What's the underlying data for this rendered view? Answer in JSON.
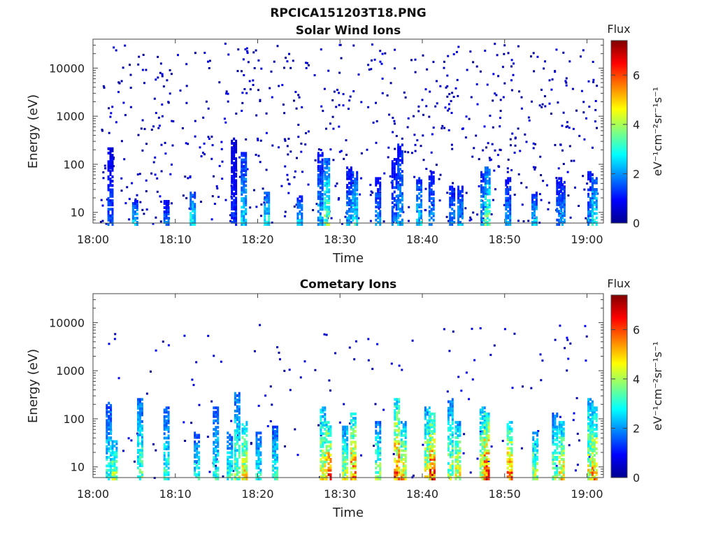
{
  "figure": {
    "title": "RPCICA151203T18.PNG"
  },
  "chart_data": [
    {
      "type": "heatmap",
      "title": "Solar Wind Ions",
      "xlabel": "Time",
      "ylabel": "Energy (eV)",
      "x_ticks": [
        "18:00",
        "18:10",
        "18:20",
        "18:30",
        "18:40",
        "18:50",
        "19:00"
      ],
      "x_range_minutes": [
        0,
        62
      ],
      "y_scale": "log",
      "y_ticks": [
        10,
        100,
        1000,
        10000
      ],
      "y_tick_labels": [
        "10",
        "100",
        "1000",
        "10000"
      ],
      "y_range": [
        6,
        40000
      ],
      "colorbar": {
        "title": "Flux",
        "unit": "eV⁻¹cm⁻²sr⁻¹s⁻¹",
        "range": [
          0,
          7.4
        ],
        "ticks": [
          0,
          2,
          4,
          6
        ],
        "colormap": "jet"
      },
      "bursts": [
        {
          "t": 2.0,
          "emax": 250,
          "flux": 1.5
        },
        {
          "t": 5.0,
          "emax": 20,
          "flux": 2.5
        },
        {
          "t": 8.8,
          "emax": 20,
          "flux": 1.8
        },
        {
          "t": 12.0,
          "emax": 30,
          "flux": 2.8
        },
        {
          "t": 17.0,
          "emax": 400,
          "flux": 1.2
        },
        {
          "t": 18.2,
          "emax": 200,
          "flux": 2.5
        },
        {
          "t": 21.0,
          "emax": 30,
          "flux": 3.0
        },
        {
          "t": 25.0,
          "emax": 25,
          "flux": 2.5
        },
        {
          "t": 27.5,
          "emax": 200,
          "flux": 2.2
        },
        {
          "t": 28.3,
          "emax": 150,
          "flux": 3.5
        },
        {
          "t": 31.0,
          "emax": 100,
          "flux": 2.0
        },
        {
          "t": 31.7,
          "emax": 80,
          "flux": 2.8
        },
        {
          "t": 34.5,
          "emax": 60,
          "flux": 2.0
        },
        {
          "t": 36.5,
          "emax": 150,
          "flux": 1.8
        },
        {
          "t": 37.2,
          "emax": 300,
          "flux": 2.2
        },
        {
          "t": 39.5,
          "emax": 60,
          "flux": 2.5
        },
        {
          "t": 41.0,
          "emax": 80,
          "flux": 2.0
        },
        {
          "t": 43.5,
          "emax": 40,
          "flux": 2.0
        },
        {
          "t": 44.5,
          "emax": 40,
          "flux": 2.2
        },
        {
          "t": 47.3,
          "emax": 80,
          "flux": 2.3
        },
        {
          "t": 47.8,
          "emax": 100,
          "flux": 3.5
        },
        {
          "t": 50.3,
          "emax": 60,
          "flux": 2.0
        },
        {
          "t": 53.5,
          "emax": 30,
          "flux": 2.5
        },
        {
          "t": 56.5,
          "emax": 60,
          "flux": 1.8
        },
        {
          "t": 56.9,
          "emax": 50,
          "flux": 2.2
        },
        {
          "t": 60.3,
          "emax": 80,
          "flux": 2.0
        },
        {
          "t": 60.8,
          "emax": 60,
          "flux": 3.0
        }
      ],
      "background": {
        "emin": 6,
        "emax": 35000,
        "flux": 0.5
      }
    },
    {
      "type": "heatmap",
      "title": "Cometary Ions",
      "xlabel": "Time",
      "ylabel": "Energy (eV)",
      "x_ticks": [
        "18:00",
        "18:10",
        "18:20",
        "18:30",
        "18:40",
        "18:50",
        "19:00"
      ],
      "x_range_minutes": [
        0,
        62
      ],
      "y_scale": "log",
      "y_ticks": [
        10,
        100,
        1000,
        10000
      ],
      "y_tick_labels": [
        "10",
        "100",
        "1000",
        "10000"
      ],
      "y_range": [
        6,
        40000
      ],
      "colorbar": {
        "title": "Flux",
        "unit": "eV⁻¹cm⁻²sr⁻¹s⁻¹",
        "range": [
          0,
          7.4
        ],
        "ticks": [
          0,
          2,
          4,
          6
        ],
        "colormap": "jet"
      },
      "bursts": [
        {
          "t": 1.8,
          "emax": 250,
          "flux": 3.0
        },
        {
          "t": 2.5,
          "emax": 40,
          "flux": 4.2
        },
        {
          "t": 5.6,
          "emax": 300,
          "flux": 3.5
        },
        {
          "t": 8.8,
          "emax": 200,
          "flux": 3.2
        },
        {
          "t": 12.5,
          "emax": 60,
          "flux": 3.0
        },
        {
          "t": 14.8,
          "emax": 200,
          "flux": 3.0
        },
        {
          "t": 16.5,
          "emax": 60,
          "flux": 3.2
        },
        {
          "t": 17.4,
          "emax": 400,
          "flux": 3.6
        },
        {
          "t": 18.3,
          "emax": 100,
          "flux": 4.8
        },
        {
          "t": 20.0,
          "emax": 60,
          "flux": 3.0
        },
        {
          "t": 22.0,
          "emax": 80,
          "flux": 3.2
        },
        {
          "t": 27.8,
          "emax": 200,
          "flux": 4.5
        },
        {
          "t": 28.5,
          "emax": 100,
          "flux": 5.8
        },
        {
          "t": 30.5,
          "emax": 80,
          "flux": 4.2
        },
        {
          "t": 31.5,
          "emax": 150,
          "flux": 5.5
        },
        {
          "t": 34.5,
          "emax": 100,
          "flux": 3.8
        },
        {
          "t": 36.8,
          "emax": 300,
          "flux": 5.8
        },
        {
          "t": 37.6,
          "emax": 100,
          "flux": 4.8
        },
        {
          "t": 40.5,
          "emax": 200,
          "flux": 4.5
        },
        {
          "t": 41.1,
          "emax": 150,
          "flux": 5.9
        },
        {
          "t": 43.3,
          "emax": 300,
          "flux": 4.0
        },
        {
          "t": 44.2,
          "emax": 100,
          "flux": 4.6
        },
        {
          "t": 47.2,
          "emax": 200,
          "flux": 4.5
        },
        {
          "t": 47.7,
          "emax": 150,
          "flux": 6.2
        },
        {
          "t": 50.5,
          "emax": 100,
          "flux": 5.6
        },
        {
          "t": 53.6,
          "emax": 60,
          "flux": 4.2
        },
        {
          "t": 56.0,
          "emax": 150,
          "flux": 3.8
        },
        {
          "t": 56.8,
          "emax": 100,
          "flux": 4.8
        },
        {
          "t": 60.3,
          "emax": 300,
          "flux": 4.5
        },
        {
          "t": 60.8,
          "emax": 200,
          "flux": 5.2
        }
      ],
      "background": {
        "emin": 6,
        "emax": 10000,
        "flux": 0.6
      }
    }
  ]
}
